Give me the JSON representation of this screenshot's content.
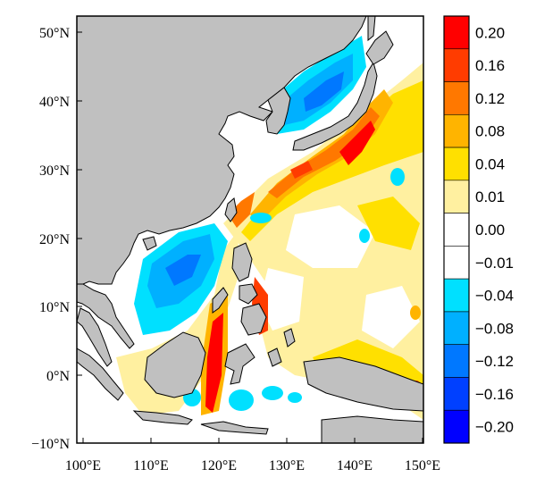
{
  "map": {
    "lon_ticks": [
      "100°E",
      "110°E",
      "120°E",
      "130°E",
      "140°E",
      "150°E"
    ],
    "lat_ticks": [
      "50°N",
      "40°N",
      "30°N",
      "20°N",
      "10°N",
      "0°N",
      "−10°N"
    ],
    "lon_range": [
      99,
      150
    ],
    "lat_range": [
      -10,
      53
    ],
    "land_color": "#c0c0c0",
    "coastline_color": "#000000"
  },
  "colorbar": {
    "levels": [
      {
        "label": "0.20",
        "color": "#ff0000"
      },
      {
        "label": "0.16",
        "color": "#ff3c00"
      },
      {
        "label": "0.12",
        "color": "#ff7800"
      },
      {
        "label": "0.08",
        "color": "#ffb400"
      },
      {
        "label": "0.04",
        "color": "#ffe000"
      },
      {
        "label": "0.01",
        "color": "#fff0a0"
      },
      {
        "label": "0.00",
        "color": "#ffffff"
      },
      {
        "label": "−0.01",
        "color": "#ffffff"
      },
      {
        "label": "−0.04",
        "color": "#00e0ff"
      },
      {
        "label": "−0.08",
        "color": "#00b0ff"
      },
      {
        "label": "−0.12",
        "color": "#0078ff"
      },
      {
        "label": "−0.16",
        "color": "#0040ff"
      },
      {
        "label": "−0.20",
        "color": "#0000ff"
      }
    ]
  }
}
